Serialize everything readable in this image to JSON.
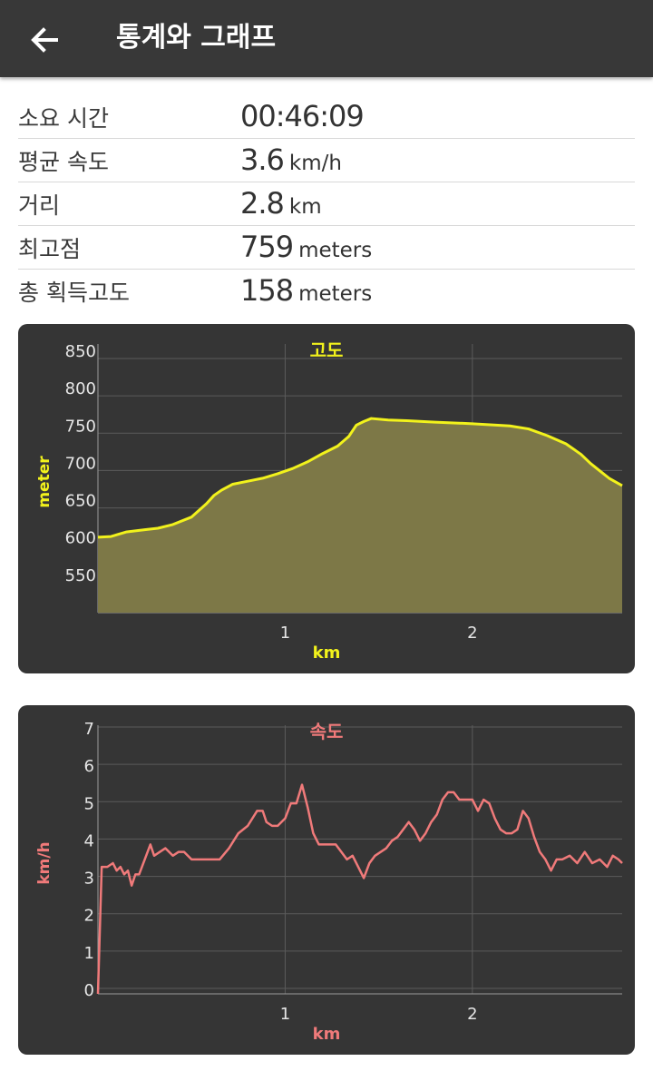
{
  "appbar": {
    "title": "통계와 그래프",
    "back_icon": "arrow-left-icon"
  },
  "stats": [
    {
      "label": "소요 시간",
      "value": "00:46:09",
      "unit": ""
    },
    {
      "label": "평균 속도",
      "value": "3.6",
      "unit": "km/h"
    },
    {
      "label": "거리",
      "value": "2.8",
      "unit": "km"
    },
    {
      "label": "최고점",
      "value": "759",
      "unit": "meters"
    },
    {
      "label": "총 획득고도",
      "value": "158",
      "unit": "meters"
    }
  ],
  "chart_data": [
    {
      "type": "area",
      "title": "고도",
      "xlabel": "km",
      "ylabel": "meter",
      "color": "#f2f21c",
      "fill": "#7d7847",
      "grid": true,
      "xlim": [
        0,
        2.8
      ],
      "ylim": [
        500,
        850
      ],
      "xticks": [
        "1",
        "2"
      ],
      "yticks": [
        "850",
        "800",
        "750",
        "700",
        "650",
        "600",
        "550"
      ],
      "x": [
        0,
        0.07,
        0.15,
        0.25,
        0.32,
        0.4,
        0.5,
        0.58,
        0.62,
        0.66,
        0.72,
        0.8,
        0.88,
        0.96,
        1.04,
        1.12,
        1.2,
        1.28,
        1.34,
        1.38,
        1.42,
        1.46,
        1.55,
        1.65,
        1.8,
        2.0,
        2.2,
        2.3,
        2.4,
        2.5,
        2.58,
        2.63,
        2.68,
        2.73,
        2.8
      ],
      "y": [
        601,
        602,
        608,
        611,
        613,
        618,
        628,
        646,
        657,
        664,
        672,
        676,
        680,
        686,
        693,
        702,
        713,
        723,
        736,
        751,
        756,
        760,
        758,
        757,
        755,
        753,
        750,
        746,
        737,
        726,
        712,
        700,
        690,
        680,
        670
      ]
    },
    {
      "type": "line",
      "title": "속도",
      "xlabel": "km",
      "ylabel": "km/h",
      "color": "#f07a7a",
      "grid": true,
      "xlim": [
        0,
        2.8
      ],
      "ylim": [
        0,
        7
      ],
      "xticks": [
        "1",
        "2"
      ],
      "yticks": [
        "7",
        "6",
        "5",
        "4",
        "3",
        "2",
        "1",
        "0"
      ],
      "x": [
        0,
        0.02,
        0.05,
        0.08,
        0.1,
        0.12,
        0.14,
        0.16,
        0.18,
        0.2,
        0.22,
        0.25,
        0.28,
        0.3,
        0.33,
        0.36,
        0.4,
        0.43,
        0.46,
        0.48,
        0.5,
        0.53,
        0.56,
        0.6,
        0.65,
        0.7,
        0.75,
        0.8,
        0.85,
        0.88,
        0.9,
        0.93,
        0.96,
        1.0,
        1.03,
        1.06,
        1.09,
        1.12,
        1.15,
        1.18,
        1.21,
        1.24,
        1.27,
        1.3,
        1.33,
        1.36,
        1.39,
        1.42,
        1.45,
        1.48,
        1.51,
        1.54,
        1.57,
        1.6,
        1.63,
        1.66,
        1.69,
        1.72,
        1.75,
        1.78,
        1.81,
        1.84,
        1.87,
        1.9,
        1.93,
        1.96,
        2.0,
        2.03,
        2.06,
        2.09,
        2.12,
        2.15,
        2.18,
        2.21,
        2.24,
        2.27,
        2.3,
        2.33,
        2.36,
        2.39,
        2.42,
        2.45,
        2.48,
        2.52,
        2.56,
        2.6,
        2.64,
        2.68,
        2.72,
        2.75,
        2.78,
        2.8
      ],
      "y": [
        0,
        3.4,
        3.4,
        3.5,
        3.3,
        3.4,
        3.2,
        3.3,
        2.9,
        3.2,
        3.2,
        3.6,
        4.0,
        3.7,
        3.8,
        3.9,
        3.7,
        3.8,
        3.8,
        3.7,
        3.6,
        3.6,
        3.6,
        3.6,
        3.6,
        3.9,
        4.3,
        4.5,
        4.9,
        4.9,
        4.6,
        4.5,
        4.5,
        4.7,
        5.1,
        5.1,
        5.6,
        5.0,
        4.3,
        4.0,
        4.0,
        4.0,
        4.0,
        3.8,
        3.6,
        3.7,
        3.4,
        3.1,
        3.5,
        3.7,
        3.8,
        3.9,
        4.1,
        4.2,
        4.4,
        4.6,
        4.4,
        4.1,
        4.3,
        4.6,
        4.8,
        5.2,
        5.4,
        5.4,
        5.2,
        5.2,
        5.2,
        4.9,
        5.2,
        5.1,
        4.7,
        4.4,
        4.3,
        4.3,
        4.4,
        4.9,
        4.7,
        4.2,
        3.8,
        3.6,
        3.3,
        3.6,
        3.6,
        3.7,
        3.5,
        3.8,
        3.5,
        3.6,
        3.4,
        3.7,
        3.6,
        3.5
      ]
    }
  ]
}
